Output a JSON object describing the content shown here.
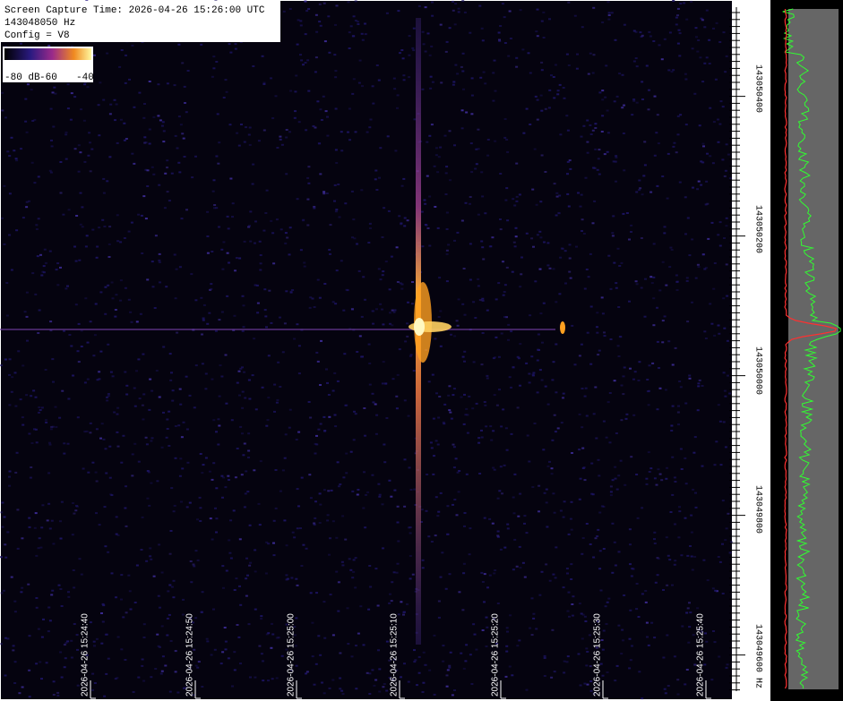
{
  "info": {
    "capture_time": "Screen Capture Time: 2026-04-26 15:26:00 UTC",
    "frequency": "143048050 Hz",
    "config": "Config = V8"
  },
  "colorbar": {
    "labels": [
      "-80 dB",
      "-60",
      "-40"
    ]
  },
  "time_axis": {
    "labels": [
      "2026-04-26 15:24:40",
      "2026-04-26 15:24:50",
      "2026-04-26 15:25:00",
      "2026-04-26 15:25:10",
      "2026-04-26 15:25:20",
      "2026-04-26 15:25:30",
      "2026-04-26 15:25:40"
    ]
  },
  "frequency_axis": {
    "labels": [
      "143050400",
      "143050200",
      "143050000",
      "143049800",
      "143049600 Hz"
    ]
  }
}
